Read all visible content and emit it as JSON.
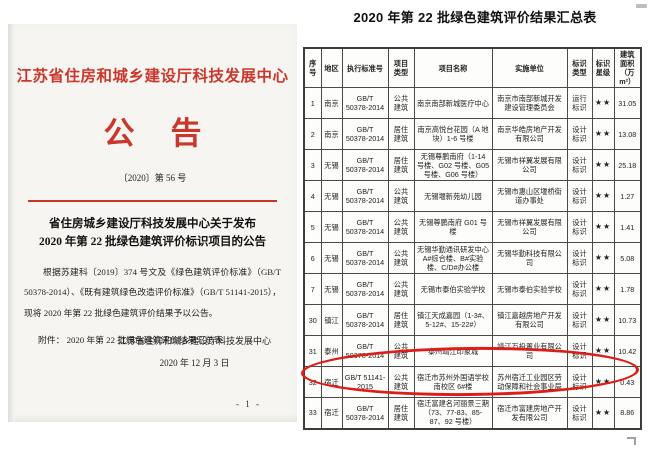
{
  "left_document": {
    "org_title": "江苏省住房和城乡建设厅科技发展中心",
    "announcement_title": "公告",
    "doc_number": "〔2020〕第 56 号",
    "heading_line1": "省住房城乡建设厅科技发展中心关于发布",
    "heading_line2": "2020 年第 22 批绿色建筑评价标识项目的公告",
    "body": "根据苏建科〔2019〕374 号文及《绿色建筑评价标准》（GB/T 50378-2014）、《既有建筑绿色改造评价标准》（GB/T 51141-2015），现将 2020 年第 22 批绿色建筑评价结果予以公告。",
    "attachment": "附件：  2020 年第 22 批绿色建筑评价结果汇总表",
    "signature": "江苏省住房和城乡建设厅科技发展中心",
    "date": "2020 年 12 月 3 日",
    "page_number": "- 1 -",
    "accent_color": "#cb372c"
  },
  "table_document": {
    "title": "2020 年第 22 批绿色建筑评价结果汇总表",
    "columns": [
      "序号",
      "地区",
      "执行标准号",
      "项目类型",
      "项目名称",
      "实施单位",
      "标识类型",
      "标识星级",
      "建筑面积（万m²）"
    ],
    "rows": [
      {
        "no": "1",
        "region": "南京",
        "standard": "GB/T 50378-2014",
        "type": "公共建筑",
        "project": "南京南部新城医疗中心",
        "implementer": "南京市南部新城开发建设管理委员会",
        "label_type": "运行标识",
        "stars": "★★",
        "area": "31.05"
      },
      {
        "no": "2",
        "region": "南京",
        "standard": "GB/T 50378-2014",
        "type": "居住建筑",
        "project": "南京高悦台花园（A 地块）1-6 号楼",
        "implementer": "南京华皓房地产开发有限公司",
        "label_type": "设计标识",
        "stars": "★★",
        "area": "13.08"
      },
      {
        "no": "3",
        "region": "无锡",
        "standard": "GB/T 50378-2014",
        "type": "居住建筑",
        "project": "无锡尊鹏南府（1-14 号楼、G02 号楼、G05 号楼、G06 号楼）",
        "implementer": "无锡市祥翼发展有限公司",
        "label_type": "设计标识",
        "stars": "★★",
        "area": "25.18"
      },
      {
        "no": "4",
        "region": "无锡",
        "standard": "GB/T 50378-2014",
        "type": "公共建筑",
        "project": "无锡堰新苑幼儿园",
        "implementer": "无锡市惠山区堰桥街道办事处",
        "label_type": "设计标识",
        "stars": "★★",
        "area": "1.27"
      },
      {
        "no": "5",
        "region": "无锡",
        "standard": "GB/T 50378-2014",
        "type": "公共建筑",
        "project": "无锡尊鹏南府 G01 号楼",
        "implementer": "无锡市祥翼发展有限公司",
        "label_type": "设计标识",
        "stars": "★★",
        "area": "1.41"
      },
      {
        "no": "6",
        "region": "无锡",
        "standard": "GB/T 50378-2014",
        "type": "公共建筑",
        "project": "无锡华勤通讯研发中心 A#综合楼、B#实验楼、C/D#办公楼",
        "implementer": "无锡华勤科技有限公司",
        "label_type": "设计标识",
        "stars": "★★",
        "area": "5.08"
      },
      {
        "no": "7",
        "region": "无锡",
        "standard": "GB/T 50378-2014",
        "type": "公共建筑",
        "project": "无锡市泰伯实验学校",
        "implementer": "无锡市泰伯实验学校",
        "label_type": "设计标识",
        "stars": "★★",
        "area": "1.78"
      },
      {
        "no": "30",
        "region": "镇江",
        "standard": "GB/T 50378-2014",
        "type": "居住建筑",
        "project": "镇江天成嘉园（1-3#、5-12#、15-22#）",
        "implementer": "镇江嘉越房地产开发有限公司",
        "label_type": "设计标识",
        "stars": "★★",
        "area": "10.73"
      },
      {
        "no": "31",
        "region": "泰州",
        "standard": "GB/T 50378-2014",
        "type": "公共建筑",
        "project": "泰州靖江印象城",
        "implementer": "靖江万投置业有限公司",
        "label_type": "设计标识",
        "stars": "★★",
        "area": "10.42"
      },
      {
        "no": "32",
        "region": "宿迁",
        "standard": "GB/T 51141-2015",
        "type": "公共建筑",
        "project": "宿迁市苏州外国语学校南校区 6#楼",
        "implementer": "苏州宿迁工业园区劳动保障和社会事业局",
        "label_type": "设计标识",
        "stars": "★★",
        "area": "0.43"
      },
      {
        "no": "33",
        "region": "宿迁",
        "standard": "GB/T 50378-2014",
        "type": "居住建筑",
        "project": "宿迁富建名河丽景三期（73、77-83、85-87、92 号楼）",
        "implementer": "宿迁市富建房地产开发有限公司",
        "label_type": "设计标识",
        "stars": "★★",
        "area": "8.86"
      }
    ]
  },
  "annotations": {
    "highlighted_row_no": "32",
    "highlight_color": "#dd1e18"
  }
}
